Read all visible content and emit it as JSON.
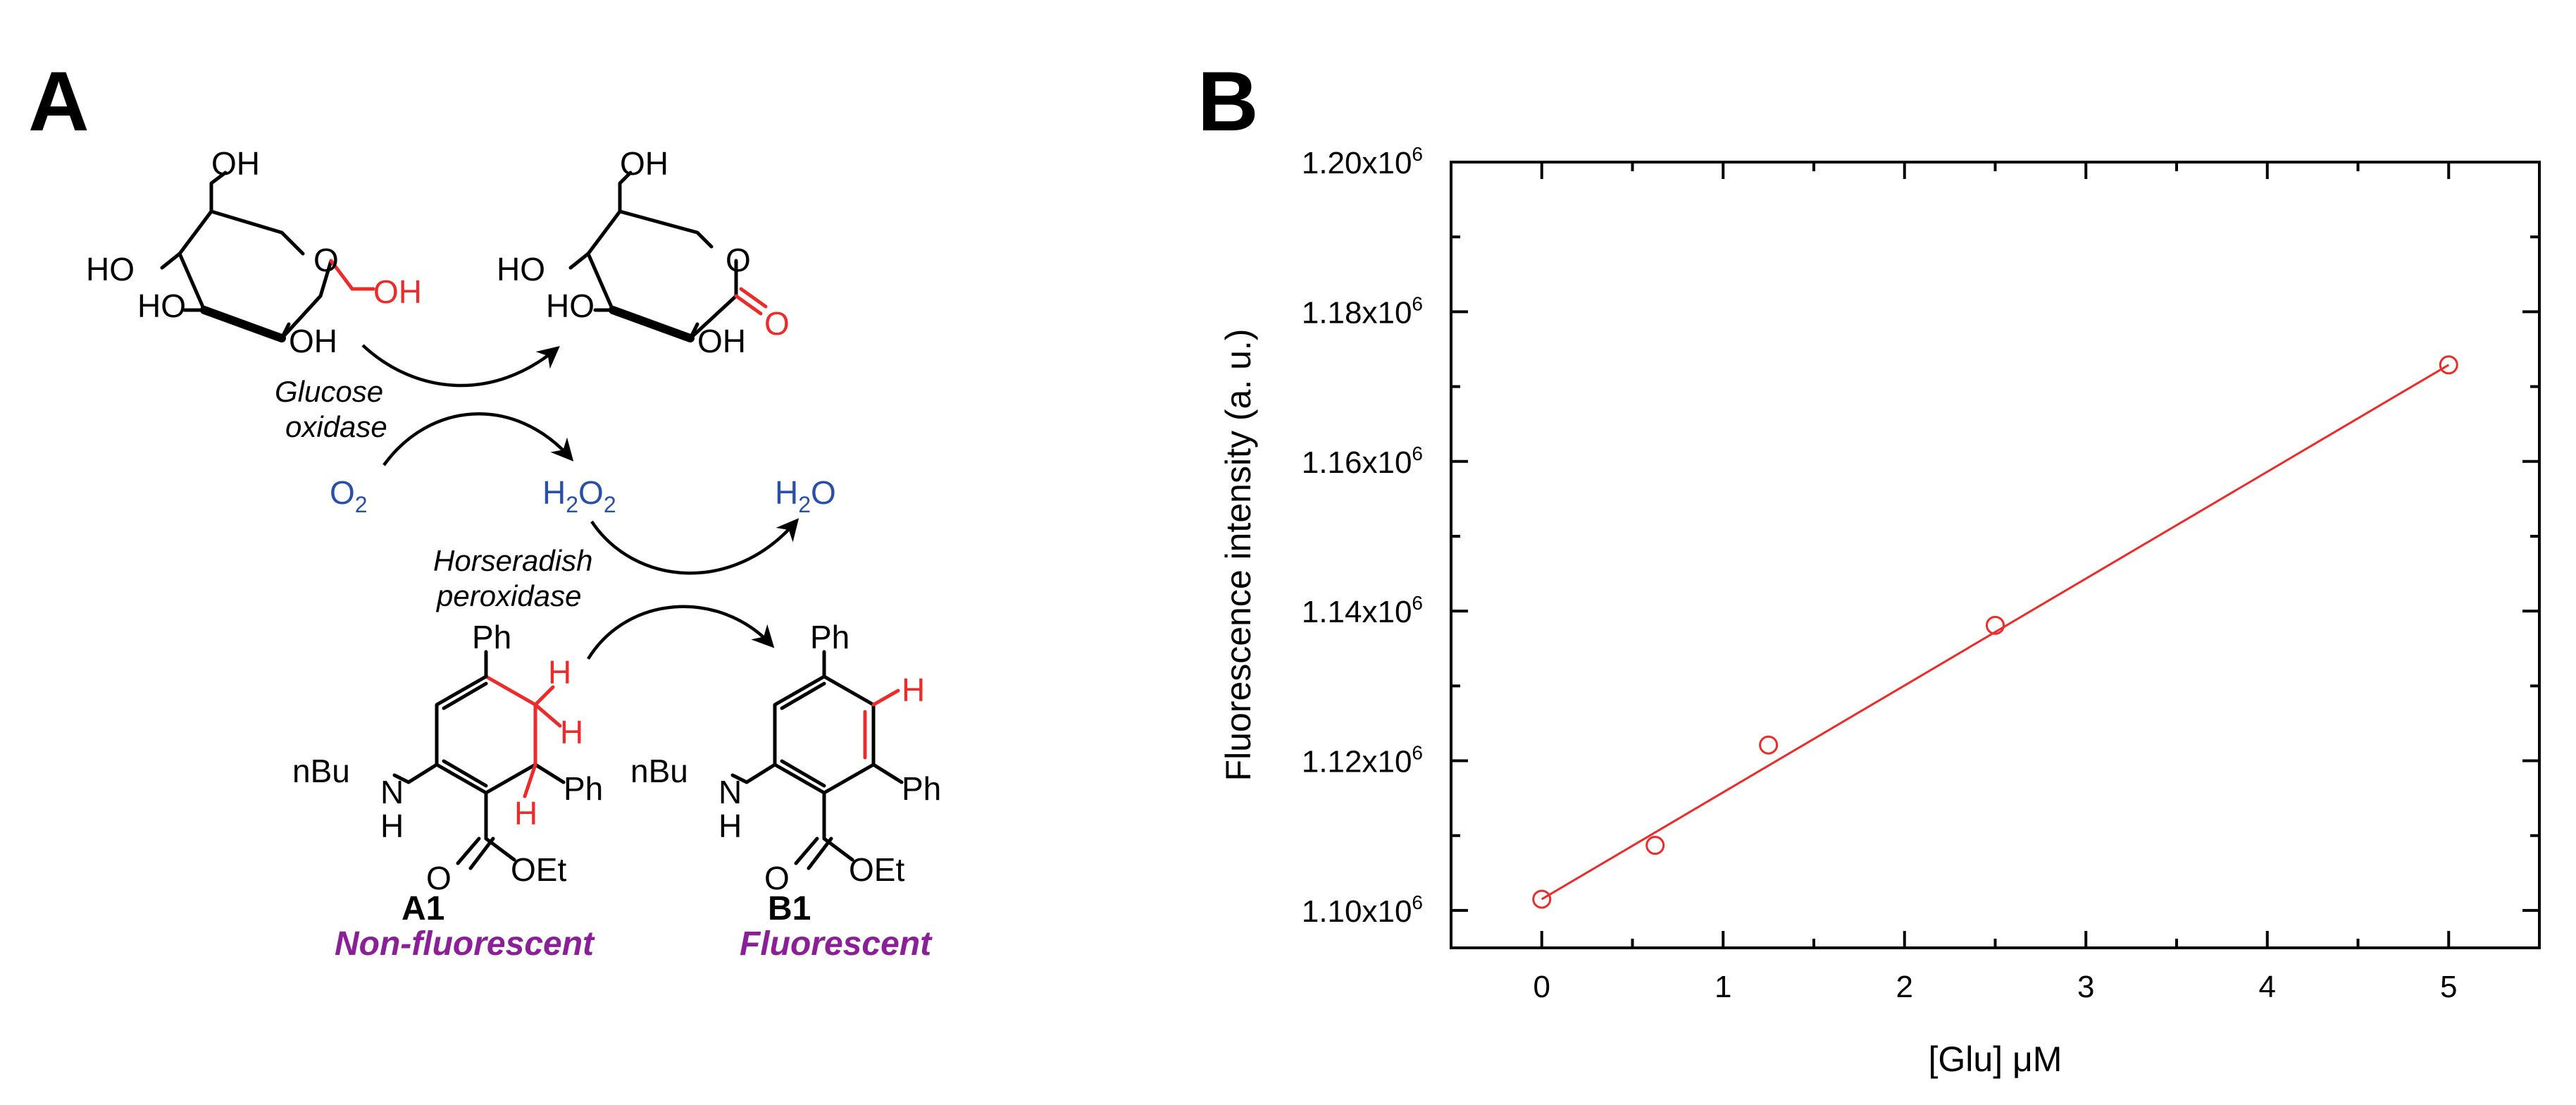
{
  "panel_a": {
    "letter": "A",
    "glucose": {
      "oh_top": "OH",
      "ho_left": "HO",
      "ho_mid": "HO",
      "oh_bottom": "OH",
      "oh_anomeric": "OH",
      "ring_o": "O"
    },
    "lactone": {
      "oh_top": "OH",
      "ho_left": "HO",
      "ho_mid": "HO",
      "oh_bottom": "OH",
      "carbonyl_o": "O",
      "ring_o": "O"
    },
    "enzyme1": [
      "Glucose",
      "oxidase"
    ],
    "enzyme2": [
      "Horseradish",
      "peroxidase"
    ],
    "o2": {
      "main": "O",
      "sub": "2"
    },
    "h2o2": {
      "h": "H",
      "sub1": "2",
      "o": "O",
      "sub2": "2"
    },
    "h2o": {
      "main": "H",
      "sub": "2",
      "tail": "O"
    },
    "compound_a1": {
      "ph_top": "Ph",
      "ph_right": "Ph",
      "h1": "H",
      "h2": "H",
      "h3": "H",
      "nbu": "nBu",
      "nh_n": "N",
      "nh_h": "H",
      "ester_o": "O",
      "oet": "OEt",
      "id": "A1",
      "desc": "Non-fluorescent"
    },
    "compound_b1": {
      "ph_top": "Ph",
      "ph_right": "Ph",
      "h": "H",
      "nbu": "nBu",
      "nh_n": "N",
      "nh_h": "H",
      "ester_o": "O",
      "oet": "OEt",
      "id": "B1",
      "desc": "Fluorescent"
    }
  },
  "colors": {
    "red": "#ee2b2b",
    "blue": "#2a4fa8",
    "purple": "#8b1f98"
  },
  "chart_data": {
    "type": "scatter",
    "panel_letter": "B",
    "xlabel": "[Glu] μM",
    "ylabel": "Fluorescence intensity (a. u.)",
    "xlim": [
      -0.5,
      5.5
    ],
    "ylim": [
      1.095,
      1.2
    ],
    "x_ticks": [
      "0",
      "1",
      "2",
      "3",
      "4",
      "5"
    ],
    "y_ticks": [
      {
        "value": 1.1,
        "base": "1.10x10",
        "exp": "6"
      },
      {
        "value": 1.12,
        "base": "1.12x10",
        "exp": "6"
      },
      {
        "value": 1.14,
        "base": "1.14x10",
        "exp": "6"
      },
      {
        "value": 1.16,
        "base": "1.16x10",
        "exp": "6"
      },
      {
        "value": 1.18,
        "base": "1.18x10",
        "exp": "6"
      },
      {
        "value": 1.2,
        "base": "1.20x10",
        "exp": "6"
      }
    ],
    "y_unit_multiplier": 1000000,
    "points": [
      {
        "x": 0,
        "y": 1.1015
      },
      {
        "x": 0.625,
        "y": 1.1087
      },
      {
        "x": 1.25,
        "y": 1.1221
      },
      {
        "x": 2.5,
        "y": 1.1381
      },
      {
        "x": 5.0,
        "y": 1.1729
      }
    ],
    "fit_line": {
      "x": [
        0,
        5.0
      ],
      "y": [
        1.1015,
        1.1729
      ]
    },
    "marker_color": "#ee2b2b",
    "line_color": "#ee2b2b",
    "grid": false
  }
}
